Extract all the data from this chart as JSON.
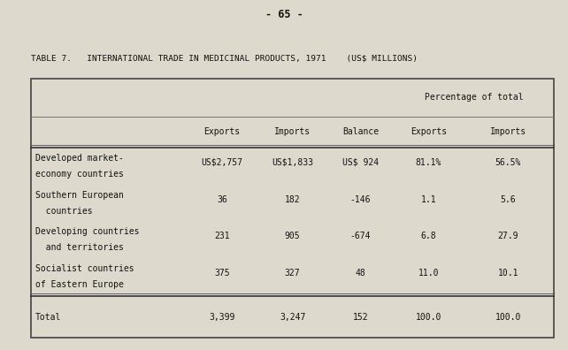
{
  "title": "TABLE 7.   INTERNATIONAL TRADE IN MEDICINAL PRODUCTS, 1971    (US$ MILLIONS)",
  "page_header": "- 65 -",
  "col_header_group": "Percentage of total",
  "col_headers": [
    "Exports",
    "Imports",
    "Balance",
    "Exports",
    "Imports"
  ],
  "rows": [
    {
      "label1": "Developed market-",
      "label2": "economy countries",
      "exports": "US$2,757",
      "imports": "US$1,833",
      "balance": "US$ 924",
      "pct_exports": "81.1%",
      "pct_imports": "56.5%"
    },
    {
      "label1": "Southern European",
      "label2": "  countries",
      "exports": "36",
      "imports": "182",
      "balance": "-146",
      "pct_exports": "1.1",
      "pct_imports": "5.6"
    },
    {
      "label1": "Developing countries",
      "label2": "  and territories",
      "exports": "231",
      "imports": "905",
      "balance": "-674",
      "pct_exports": "6.8",
      "pct_imports": "27.9"
    },
    {
      "label1": "Socialist countries",
      "label2": "of Eastern Europe",
      "exports": "375",
      "imports": "327",
      "balance": "48",
      "pct_exports": "11.0",
      "pct_imports": "10.1"
    }
  ],
  "total_row": {
    "label": "Total",
    "exports": "3,399",
    "imports": "3,247",
    "balance": "152",
    "pct_exports": "100.0",
    "pct_imports": "100.0"
  },
  "bg_color": "#ddd9cc",
  "text_color": "#111111",
  "font_size": 7.0
}
